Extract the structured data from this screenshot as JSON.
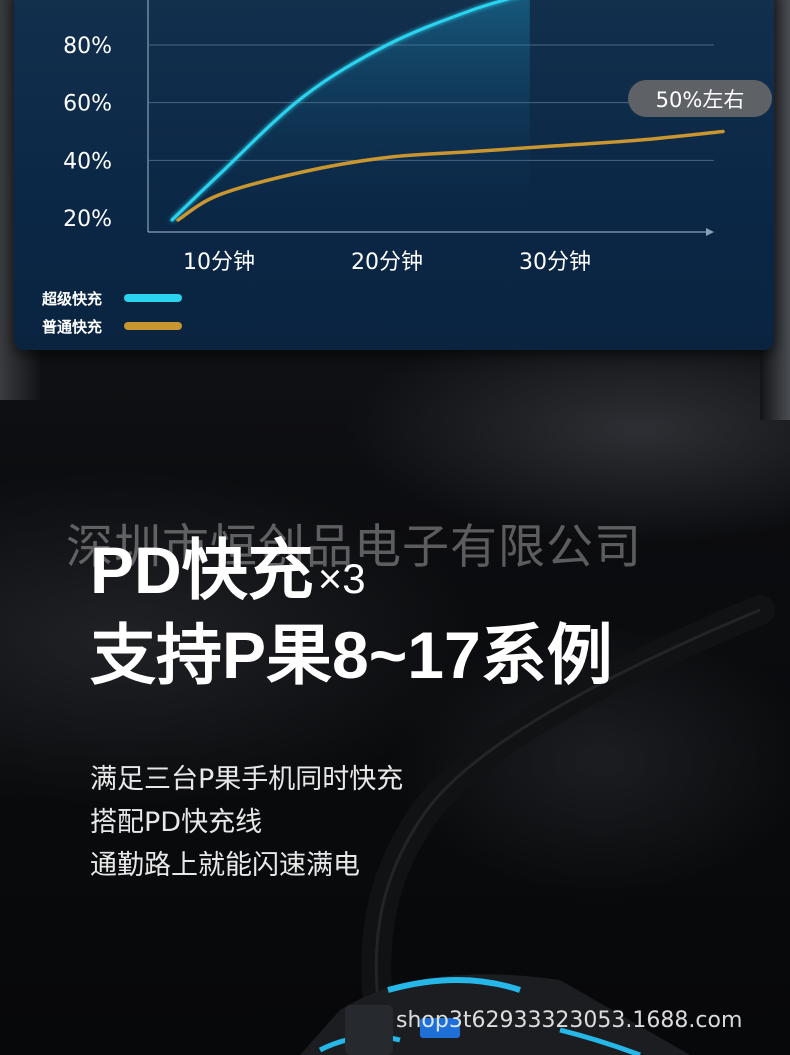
{
  "colors": {
    "card_bg": "#0b2746",
    "super_fast": "#2ad4f0",
    "normal_fast": "#c9962f",
    "pill_bg": "#5e6266"
  },
  "chart_data": {
    "type": "line",
    "y_tick_labels": [
      "80%",
      "60%",
      "40%",
      "20%"
    ],
    "x_tick_labels": [
      "10分钟",
      "20分钟",
      "30分钟"
    ],
    "series": [
      {
        "name": "超级快充",
        "color": "#2ad4f0",
        "x": [
          7,
          10,
          15,
          20,
          25,
          28.5
        ],
        "y": [
          20,
          35,
          62,
          80,
          92,
          98
        ]
      },
      {
        "name": "普通快充",
        "color": "#c9962f",
        "x": [
          7,
          10,
          15,
          20,
          25,
          30,
          35,
          40
        ],
        "y": [
          20,
          28,
          36,
          41,
          43,
          45,
          47,
          50
        ]
      }
    ],
    "ylim": [
      10,
      100
    ],
    "xlim": [
      5,
      42
    ],
    "grid": true,
    "annotation": "50%左右"
  },
  "legend": {
    "items": [
      {
        "label": "超级快充"
      },
      {
        "label": "普通快充"
      }
    ]
  },
  "watermark": "深圳市恒创品电子有限公司",
  "headline": {
    "line1": "PD快充",
    "line1_suffix": "×3",
    "line2": "支持P果8~17系例"
  },
  "body": {
    "lines": [
      "满足三台P果手机同时快充",
      "搭配PD快充线",
      "通勤路上就能闪速满电"
    ]
  },
  "shop_watermark": "shop3t62933323053.1688.com",
  "icons": {
    "cable": "usb-cable-icon",
    "charger": "car-charger-icon"
  }
}
